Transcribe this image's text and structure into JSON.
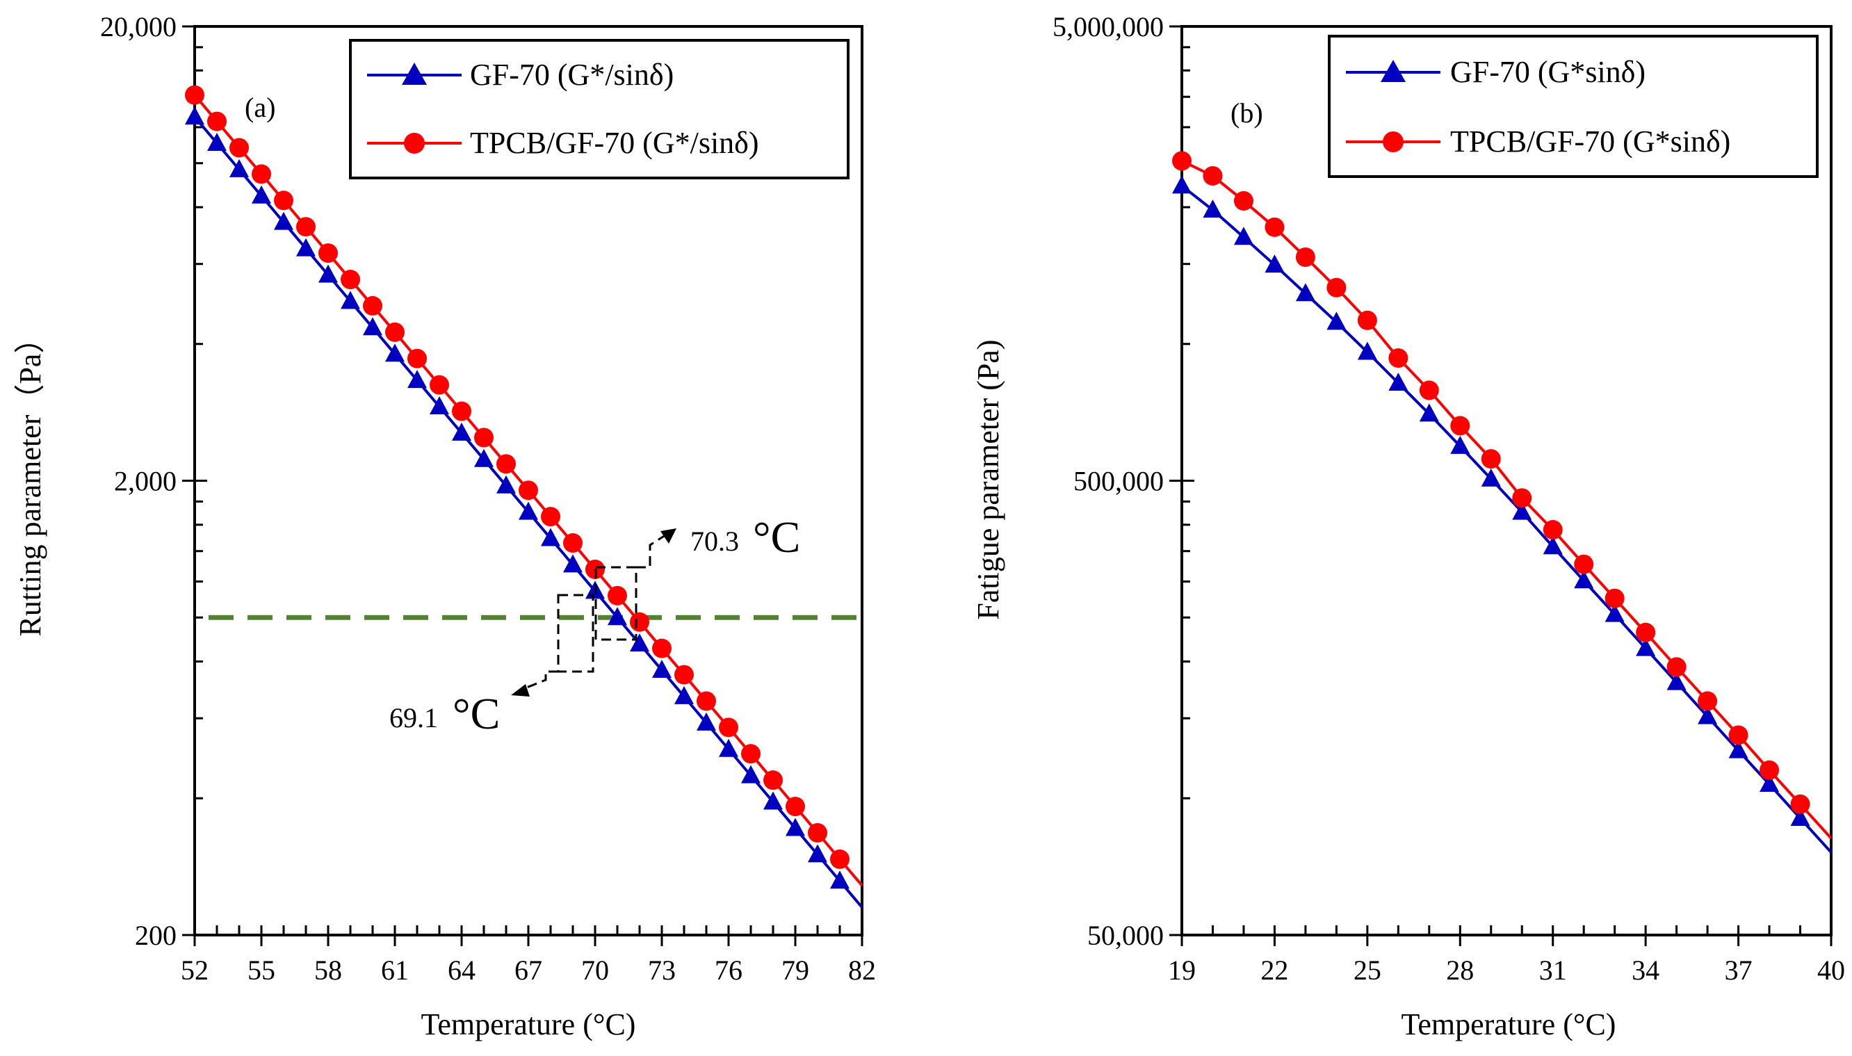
{
  "chart_data": [
    {
      "type": "line",
      "panel_label": "(a)",
      "xlabel": "Temperature (°C)",
      "ylabel": "Rutting parameter（Pa）",
      "yscale": "log",
      "xlim": [
        52,
        82
      ],
      "ylim": [
        200,
        20000
      ],
      "x_ticks": [
        52,
        55,
        58,
        61,
        64,
        67,
        70,
        73,
        76,
        79,
        82
      ],
      "x_tick_labels": [
        "52",
        "55",
        "58",
        "61",
        "64",
        "67",
        "70",
        "73",
        "76",
        "79",
        "82"
      ],
      "y_tick_labels": [
        {
          "value": 200,
          "label": "200"
        },
        {
          "value": 2000,
          "label": "2,000"
        },
        {
          "value": 20000,
          "label": "20,000"
        }
      ],
      "legend_position": "top-right",
      "series": [
        {
          "name": "GF-70 (G*/sinδ)",
          "color": "#0000c0",
          "marker": "triangle",
          "x0": 52,
          "step": 1,
          "values_log10": [
            4.102,
            4.044,
            3.986,
            3.928,
            3.87,
            3.812,
            3.754,
            3.696,
            3.638,
            3.58,
            3.522,
            3.464,
            3.406,
            3.348,
            3.29,
            3.232,
            3.174,
            3.116,
            3.058,
            3.0,
            2.942,
            2.884,
            2.826,
            2.768,
            2.71,
            2.652,
            2.594,
            2.536,
            2.478,
            2.42
          ]
        },
        {
          "name": "TPCB/GF-70 (G*/sinδ)",
          "color": "#ff0000",
          "marker": "circle",
          "x0": 52,
          "step": 1,
          "values_log10": [
            4.15,
            4.092,
            4.034,
            3.976,
            3.918,
            3.86,
            3.802,
            3.744,
            3.686,
            3.628,
            3.57,
            3.512,
            3.454,
            3.396,
            3.338,
            3.28,
            3.222,
            3.164,
            3.106,
            3.048,
            2.99,
            2.932,
            2.874,
            2.816,
            2.758,
            2.7,
            2.642,
            2.584,
            2.526,
            2.468
          ]
        }
      ],
      "reference_line": {
        "value": 1000,
        "color": "#548235",
        "style": "dashed"
      },
      "annotations": [
        {
          "value": "70.3",
          "unit": "°C",
          "x": 70.3
        },
        {
          "value": "69.1",
          "unit": "°C",
          "x": 69.1
        }
      ]
    },
    {
      "type": "line",
      "panel_label": "(b)",
      "xlabel": "Temperature (°C)",
      "ylabel": "Fatigue parameter (Pa)",
      "yscale": "log",
      "xlim": [
        19,
        40
      ],
      "ylim": [
        50000,
        5000000
      ],
      "x_ticks": [
        19,
        22,
        25,
        28,
        31,
        34,
        37,
        40
      ],
      "x_tick_labels": [
        "19",
        "22",
        "25",
        "28",
        "31",
        "34",
        "37",
        "40"
      ],
      "y_tick_labels": [
        {
          "value": 50000,
          "label": "50,000"
        },
        {
          "value": 500000,
          "label": "500,000"
        },
        {
          "value": 5000000,
          "label": "5,000,000"
        }
      ],
      "legend_position": "top-right",
      "series": [
        {
          "name": "GF-70 (G*sinδ)",
          "color": "#0000c0",
          "marker": "triangle",
          "x0": 19,
          "step": 1,
          "values_log10": [
            6.348,
            6.295,
            6.235,
            6.174,
            6.111,
            6.048,
            5.982,
            5.914,
            5.846,
            5.775,
            5.703,
            5.63,
            5.554,
            5.479,
            5.405,
            5.33,
            5.255,
            5.18,
            5.105,
            5.031,
            4.956
          ]
        },
        {
          "name": "TPCB/GF-70 (G*sinδ)",
          "color": "#ff0000",
          "marker": "circle",
          "x0": 19,
          "step": 1,
          "values_log10": [
            6.403,
            6.37,
            6.315,
            6.257,
            6.191,
            6.124,
            6.052,
            5.969,
            5.898,
            5.82,
            5.747,
            5.661,
            5.591,
            5.515,
            5.44,
            5.365,
            5.289,
            5.214,
            5.139,
            5.062,
            4.987
          ]
        }
      ]
    }
  ]
}
